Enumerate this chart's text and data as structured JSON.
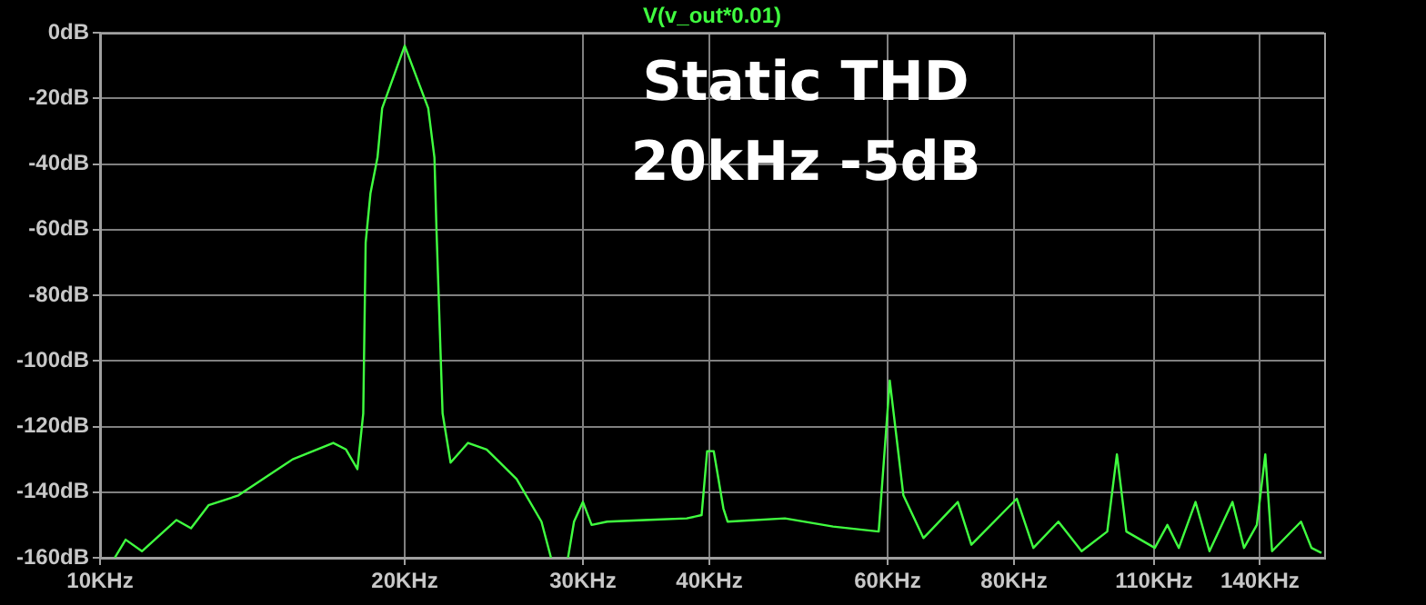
{
  "chart_data": {
    "type": "line",
    "annotations": [
      "Static THD",
      "20kHz -5dB"
    ],
    "log": "x",
    "grid": true,
    "legend": false,
    "marker": "none",
    "line_style": "solid",
    "xlim": [
      10,
      162
    ],
    "ylim": [
      -160,
      0
    ],
    "xticks": [
      {
        "value": 10,
        "label": "10KHz"
      },
      {
        "value": 20,
        "label": "20KHz"
      },
      {
        "value": 30,
        "label": "30KHz"
      },
      {
        "value": 40,
        "label": "40KHz"
      },
      {
        "value": 60,
        "label": "60KHz"
      },
      {
        "value": 80,
        "label": "80KHz"
      },
      {
        "value": 110,
        "label": "110KHz"
      },
      {
        "value": 140,
        "label": "140KHz"
      }
    ],
    "yticks": [
      {
        "value": 0,
        "label": "0dB"
      },
      {
        "value": -20,
        "label": "-20dB"
      },
      {
        "value": -40,
        "label": "-40dB"
      },
      {
        "value": -60,
        "label": "-60dB"
      },
      {
        "value": -80,
        "label": "-80dB"
      },
      {
        "value": -100,
        "label": "-100dB"
      },
      {
        "value": -120,
        "label": "-120dB"
      },
      {
        "value": -140,
        "label": "-140dB"
      },
      {
        "value": -160,
        "label": "-160dB"
      }
    ],
    "series": [
      {
        "name": "V(v_out*0.01)",
        "color": "#40ff40",
        "x": [
          10.34,
          10.6,
          11.0,
          11.9,
          12.3,
          12.8,
          13.7,
          15.5,
          17.0,
          17.5,
          17.96,
          18.2,
          18.3,
          18.5,
          18.8,
          19.0,
          20.0,
          21.1,
          21.4,
          21.5,
          21.8,
          22.2,
          23.1,
          24.1,
          25.8,
          27.3,
          27.9,
          28.5,
          29.0,
          29.4,
          30.0,
          30.6,
          31.7,
          34.5,
          38.0,
          39.3,
          39.8,
          40.4,
          41.3,
          41.7,
          47.5,
          53.0,
          58.8,
          60.3,
          62.2,
          65.1,
          70.4,
          72.6,
          80.5,
          83.6,
          88.5,
          93.3,
          98.9,
          101.1,
          103.3,
          110.2,
          113.4,
          116.4,
          120.9,
          124.8,
          131.5,
          135.0,
          139.0,
          141.7,
          143.9,
          153.7,
          157.4,
          161.0
        ],
        "values": [
          -160,
          -154.5,
          -158,
          -148.5,
          -151,
          -144,
          -141,
          -130,
          -125,
          -127,
          -133,
          -116,
          -64,
          -49,
          -38,
          -23,
          -4,
          -23,
          -38,
          -60,
          -116,
          -131,
          -125,
          -127,
          -136,
          -149,
          -160,
          null,
          -160,
          -149,
          -143,
          -150,
          -149,
          -148.5,
          -148,
          -147,
          -127.5,
          -127.5,
          -145,
          -149,
          -148,
          -150.5,
          -152,
          -106,
          -141,
          -154,
          -143,
          -156,
          -142,
          -157,
          -149,
          -158,
          -152,
          -128.5,
          -152,
          -157,
          -150,
          -157,
          -143,
          -158,
          -143,
          -157,
          -150,
          -128.5,
          -158,
          -149,
          -157,
          -158.5
        ]
      }
    ]
  }
}
